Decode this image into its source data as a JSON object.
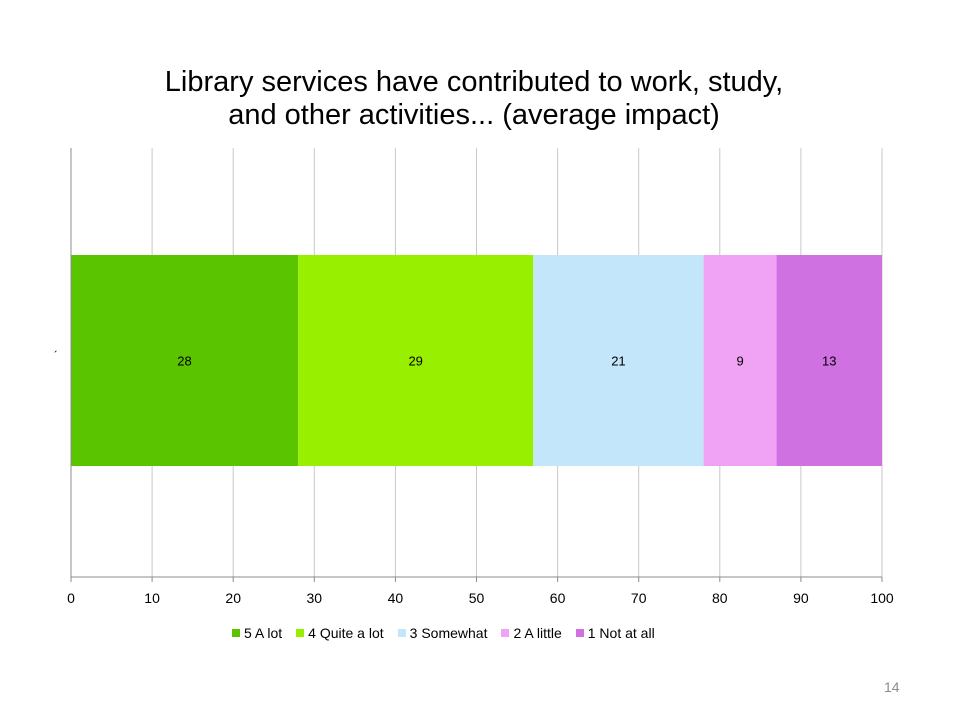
{
  "slide": {
    "title_line1": "Library services have contributed to work, study,",
    "title_line2": "and other activities... (average impact)",
    "page_number": "14"
  },
  "chart_data": {
    "type": "bar",
    "orientation": "horizontal",
    "stacked": true,
    "title": "Library services have contributed to work, study, and other activities... (average impact)",
    "categories": [
      "´"
    ],
    "xlim": [
      0,
      100
    ],
    "x_ticks": [
      "0",
      "10",
      "20",
      "30",
      "40",
      "50",
      "60",
      "70",
      "80",
      "90",
      "100"
    ],
    "grid": true,
    "legend_position": "bottom",
    "series": [
      {
        "name": "5 A lot",
        "values": [
          28
        ],
        "color": "#5ac400"
      },
      {
        "name": "4 Quite a lot",
        "values": [
          29
        ],
        "color": "#99ef00"
      },
      {
        "name": "3 Somewhat",
        "values": [
          21
        ],
        "color": "#c4e6fa"
      },
      {
        "name": "2 A little",
        "values": [
          9
        ],
        "color": "#f0a2f4"
      },
      {
        "name": "1 Not at all",
        "values": [
          13
        ],
        "color": "#cf71e1"
      }
    ]
  }
}
